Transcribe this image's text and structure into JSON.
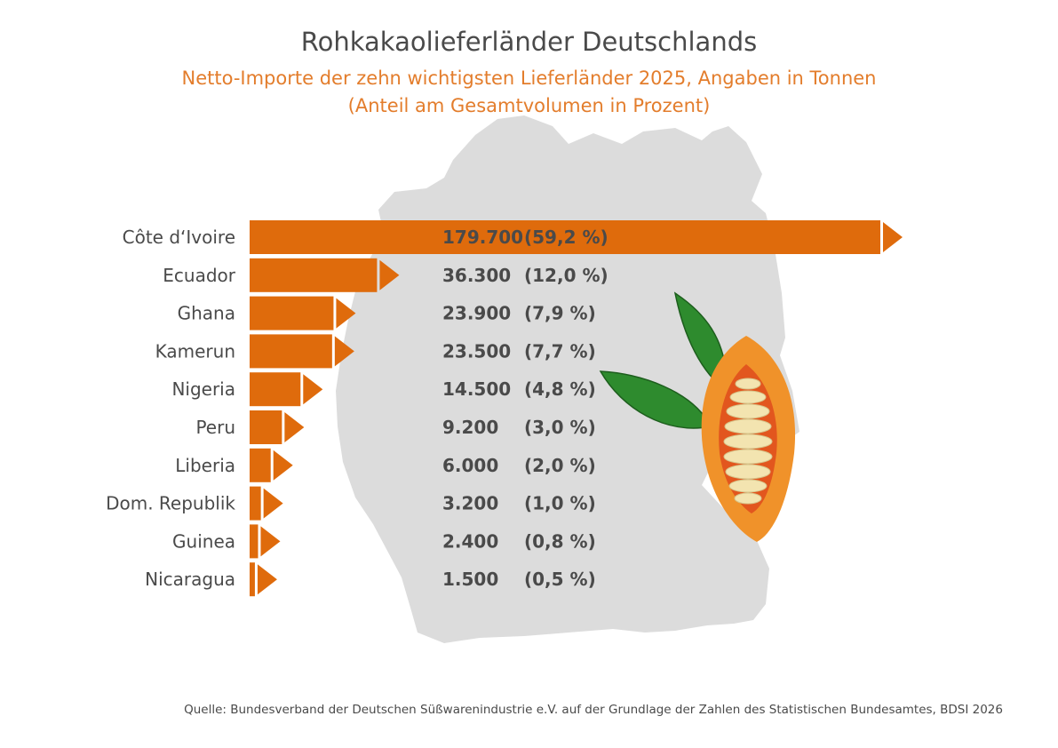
{
  "colors": {
    "bar": "#df6b0c",
    "map": "#dcdcdc",
    "text": "#4a4a4a",
    "subtitle": "#e37d2c",
    "leaf": "#2e8b2e",
    "pod_outer": "#f0922a",
    "pod_inner": "#e2561e",
    "beans": "#f3e4b0"
  },
  "chart_data": {
    "type": "bar",
    "orientation": "horizontal",
    "title": "Rohkakaolieferländer Deutschlands",
    "subtitle_line1": "Netto-Importe der zehn wichtigsten Lieferländer 2025, Angaben in Tonnen",
    "subtitle_line2": "(Anteil am Gesamtvolumen in Prozent)",
    "categories": [
      "Côte d‘Ivoire",
      "Ecuador",
      "Ghana",
      "Kamerun",
      "Nigeria",
      "Peru",
      "Liberia",
      "Dom. Republik",
      "Guinea",
      "Nicaragua"
    ],
    "values": [
      179700,
      36300,
      23900,
      23500,
      14500,
      9200,
      6000,
      3200,
      2400,
      1500
    ],
    "value_labels": [
      "179.700",
      "36.300",
      "23.900",
      "23.500",
      "14.500",
      "9.200",
      "6.000",
      "3.200",
      "2.400",
      "1.500"
    ],
    "share_labels": [
      "(59,2 %)",
      "(12,0 %)",
      "(7,9 %)",
      "(7,7 %)",
      "(4,8 %)",
      "(3,0 %)",
      "(2,0 %)",
      "(1,0 %)",
      "(0,8 %)",
      "(0,5 %)"
    ],
    "source": "Quelle: Bundesverband der Deutschen Süßwarenindustrie e.V. auf der Grundlage der Zahlen des Statistischen Bundesamtes, BDSI 2026"
  }
}
